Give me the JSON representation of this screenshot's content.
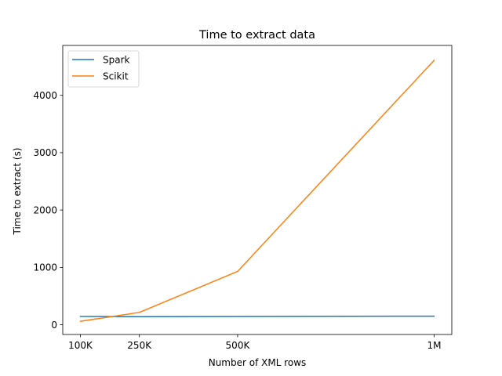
{
  "chart_data": {
    "type": "line",
    "title": "Time to extract data",
    "xlabel": "Number of XML rows",
    "ylabel": "Time to extract (s)",
    "x": [
      100000,
      250000,
      500000,
      1000000
    ],
    "x_tick_values": [
      100000,
      250000,
      500000,
      1000000
    ],
    "x_tick_labels": [
      "100K",
      "250K",
      "500K",
      "1M"
    ],
    "xlim": [
      55000,
      1045000
    ],
    "y_tick_values": [
      0,
      1000,
      2000,
      3000,
      4000
    ],
    "y_tick_labels": [
      "0",
      "1000",
      "2000",
      "3000",
      "4000"
    ],
    "ylim": [
      -170,
      4870
    ],
    "series": [
      {
        "name": "Spark",
        "color": "#1f77b4",
        "values": [
          145,
          140,
          145,
          150
        ]
      },
      {
        "name": "Scikit",
        "color": "#ff7f0e",
        "values": [
          60,
          215,
          930,
          4610
        ]
      }
    ],
    "legend": {
      "position": "top-left"
    },
    "grid": false
  }
}
